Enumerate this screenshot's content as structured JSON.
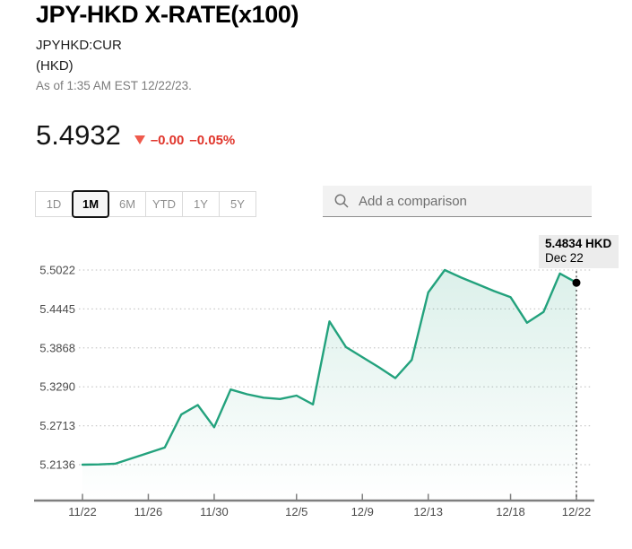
{
  "header": {
    "title": "JPY-HKD X-RATE(x100)",
    "ticker": "JPYHKD:CUR",
    "currency": "(HKD)",
    "as_of": "As of 1:35 AM EST 12/22/23."
  },
  "quote": {
    "price": "5.4932",
    "change": "–0.00",
    "change_pct": "–0.05%",
    "direction": "down",
    "down_color": "#e0352b"
  },
  "ranges": {
    "options": [
      "1D",
      "1M",
      "6M",
      "YTD",
      "1Y",
      "5Y"
    ],
    "selected": "1M"
  },
  "comparison": {
    "placeholder": "Add a comparison"
  },
  "tooltip": {
    "value_label": "5.4834 HKD",
    "date_label": "Dec 22"
  },
  "chart_data": {
    "type": "area",
    "title": "JPY-HKD X-RATE (x100), 1M range",
    "x": [
      "11/22",
      "11/23",
      "11/24",
      "11/25",
      "11/26",
      "11/27",
      "11/28",
      "11/29",
      "11/30",
      "12/1",
      "12/2",
      "12/3",
      "12/4",
      "12/5",
      "12/6",
      "12/7",
      "12/8",
      "12/9",
      "12/10",
      "12/11",
      "12/12",
      "12/13",
      "12/14",
      "12/15",
      "12/16",
      "12/17",
      "12/18",
      "12/19",
      "12/20",
      "12/21",
      "12/22"
    ],
    "values": [
      5.2136,
      5.214,
      5.215,
      5.223,
      5.231,
      5.239,
      5.288,
      5.302,
      5.269,
      5.325,
      5.318,
      5.313,
      5.311,
      5.316,
      5.303,
      5.426,
      5.388,
      5.373,
      5.358,
      5.342,
      5.369,
      5.469,
      5.5022,
      5.491,
      5.481,
      5.471,
      5.462,
      5.424,
      5.44,
      5.497,
      5.4834
    ],
    "xlabel": "",
    "ylabel": "",
    "ylim": [
      5.2136,
      5.5022
    ],
    "y_ticks": [
      5.5022,
      5.4445,
      5.3868,
      5.329,
      5.2713,
      5.2136
    ],
    "y_tick_labels": [
      "5.5022",
      "5.4445",
      "5.3868",
      "5.3290",
      "5.2713",
      "5.2136"
    ],
    "x_tick_labels": [
      "11/22",
      "11/26",
      "11/30",
      "12/5",
      "12/9",
      "12/13",
      "12/18",
      "12/22"
    ],
    "x_tick_indices": [
      0,
      4,
      8,
      13,
      17,
      21,
      26,
      30
    ],
    "grid": true,
    "legend_position": "none",
    "line_color": "#23a27d",
    "fill_color": "#23a27d",
    "axis_color": "#7f7f7f",
    "grid_color": "#c9c9c9",
    "label_color": "#4b4b4b",
    "last_point": {
      "value": 5.4834,
      "date": "Dec 22"
    }
  }
}
